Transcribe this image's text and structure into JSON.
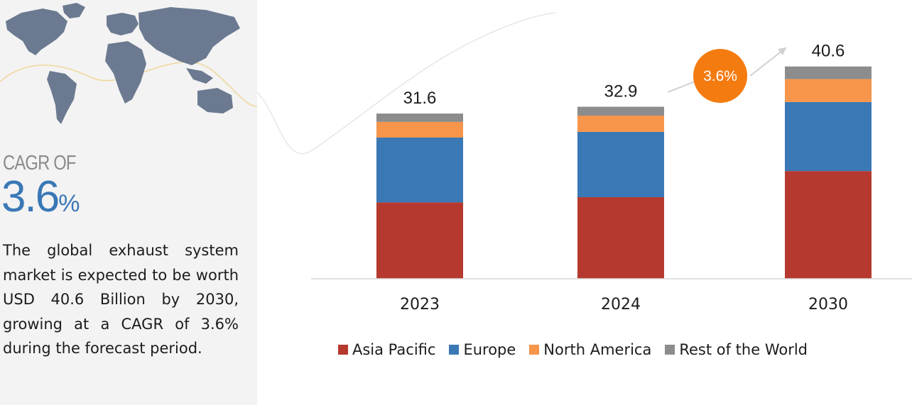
{
  "sidebar": {
    "cagr_label": "CAGR OF",
    "cagr_number": "3.6",
    "cagr_percent_sign": "%",
    "summary": "The global exhaust system market is expected to be worth USD 40.6 Billion by 2030, growing at a CAGR of 3.6% during the forecast period."
  },
  "growth_badge": "3.6%",
  "colors": {
    "asia_pacific": "#b5392e",
    "europe": "#3a78b6",
    "north_america": "#f7954a",
    "rest_of_world": "#8c8c8c",
    "badge": "#f47b10",
    "accent_blue": "#3a78b6"
  },
  "chart_data": {
    "type": "bar",
    "stacked": true,
    "categories": [
      "2023",
      "2024",
      "2030"
    ],
    "totals": [
      "31.6",
      "32.9",
      "40.6"
    ],
    "series": [
      {
        "name": "Asia Pacific",
        "values": [
          14.6,
          15.6,
          20.6
        ]
      },
      {
        "name": "Europe",
        "values": [
          12.4,
          12.5,
          13.2
        ]
      },
      {
        "name": "North America",
        "values": [
          3.0,
          3.1,
          4.4
        ]
      },
      {
        "name": "Rest of the World",
        "values": [
          1.6,
          1.7,
          2.4
        ]
      }
    ],
    "ylim": [
      0,
      48
    ],
    "legend_position": "bottom",
    "grid": false
  }
}
